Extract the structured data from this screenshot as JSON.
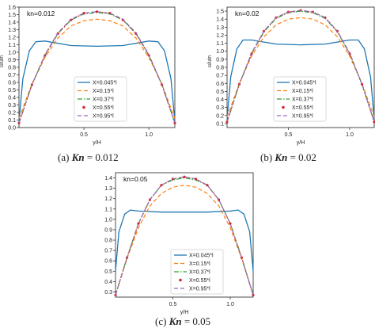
{
  "captions": [
    {
      "prefix": "(a)",
      "label": "Kn",
      "value": "= 0.012"
    },
    {
      "prefix": "(b)",
      "label": "Kn",
      "value": "= 0.02"
    },
    {
      "prefix": "(c)",
      "label": "Kn",
      "value": "= 0.05"
    }
  ],
  "colors": {
    "X=0.045*l": "#1f77b4",
    "X=0.15*l": "#ff7f0e",
    "X=0.37*l": "#2ca02c",
    "X=0.55*l": "#d62728",
    "X=0.95*l": "#9467bd"
  },
  "chart_data": [
    {
      "type": "line",
      "annotation": "kn=0.012",
      "xlabel": "y/H",
      "ylabel": "u/uin",
      "xlim": [
        0,
        1.2
      ],
      "ylim": [
        0,
        1.6
      ],
      "x_ticks": [
        0.5,
        1.0
      ],
      "y_ticks": [
        0.0,
        0.1,
        0.2,
        0.3,
        0.4,
        0.5,
        0.6,
        0.7,
        0.8,
        0.9,
        1.0,
        1.1,
        1.2,
        1.3,
        1.4,
        1.5,
        1.6
      ],
      "legend_position": "bottom-center",
      "series": [
        {
          "name": "X=0.045*l",
          "style": "solid",
          "x": [
            0.0,
            0.03,
            0.08,
            0.13,
            0.2,
            0.4,
            0.6,
            0.8,
            1.0,
            1.07,
            1.12,
            1.17,
            1.2
          ],
          "y": [
            0.08,
            0.65,
            1.02,
            1.14,
            1.15,
            1.09,
            1.08,
            1.09,
            1.15,
            1.14,
            1.02,
            0.65,
            0.08
          ]
        },
        {
          "name": "X=0.15*l",
          "style": "dashed",
          "x": [
            0.0,
            0.1,
            0.2,
            0.3,
            0.4,
            0.5,
            0.6,
            0.7,
            0.8,
            0.9,
            1.0,
            1.1,
            1.2
          ],
          "y": [
            0.12,
            0.58,
            0.93,
            1.19,
            1.35,
            1.42,
            1.44,
            1.42,
            1.35,
            1.19,
            0.93,
            0.58,
            0.12
          ]
        },
        {
          "name": "X=0.37*l",
          "style": "dashdot",
          "x": [
            0.0,
            0.1,
            0.2,
            0.3,
            0.4,
            0.5,
            0.6,
            0.7,
            0.8,
            0.9,
            1.0,
            1.1,
            1.2
          ],
          "y": [
            0.06,
            0.57,
            0.96,
            1.25,
            1.43,
            1.51,
            1.53,
            1.51,
            1.43,
            1.25,
            0.96,
            0.57,
            0.06
          ]
        },
        {
          "name": "X=0.55*l",
          "style": "dotted",
          "x": [
            0.0,
            0.1,
            0.2,
            0.3,
            0.4,
            0.5,
            0.6,
            0.7,
            0.8,
            0.9,
            1.0,
            1.1,
            1.2
          ],
          "y": [
            0.06,
            0.57,
            0.96,
            1.25,
            1.43,
            1.52,
            1.54,
            1.52,
            1.43,
            1.25,
            0.96,
            0.57,
            0.06
          ]
        },
        {
          "name": "X=0.95*l",
          "style": "dashed",
          "x": [
            0.0,
            0.1,
            0.2,
            0.3,
            0.4,
            0.5,
            0.6,
            0.7,
            0.8,
            0.9,
            1.0,
            1.1,
            1.2
          ],
          "y": [
            0.06,
            0.57,
            0.97,
            1.26,
            1.44,
            1.52,
            1.54,
            1.52,
            1.44,
            1.26,
            0.97,
            0.57,
            0.06
          ]
        }
      ]
    },
    {
      "type": "line",
      "annotation": "kn=0.02",
      "xlabel": "y/H",
      "ylabel": "u/uin",
      "xlim": [
        0,
        1.2
      ],
      "ylim": [
        0.05,
        1.55
      ],
      "x_ticks": [
        0.5,
        1.0
      ],
      "y_ticks": [
        0.1,
        0.2,
        0.3,
        0.4,
        0.5,
        0.6,
        0.7,
        0.8,
        0.9,
        1.0,
        1.1,
        1.2,
        1.3,
        1.4,
        1.5
      ],
      "legend_position": "bottom-center",
      "series": [
        {
          "name": "X=0.045*l",
          "style": "solid",
          "x": [
            0.0,
            0.03,
            0.08,
            0.13,
            0.2,
            0.4,
            0.6,
            0.8,
            1.0,
            1.07,
            1.12,
            1.17,
            1.2
          ],
          "y": [
            0.15,
            0.68,
            1.03,
            1.14,
            1.14,
            1.09,
            1.08,
            1.09,
            1.14,
            1.14,
            1.03,
            0.68,
            0.15
          ]
        },
        {
          "name": "X=0.15*l",
          "style": "dashed",
          "x": [
            0.0,
            0.1,
            0.2,
            0.3,
            0.4,
            0.5,
            0.6,
            0.7,
            0.8,
            0.9,
            1.0,
            1.1,
            1.2
          ],
          "y": [
            0.18,
            0.6,
            0.94,
            1.18,
            1.33,
            1.4,
            1.42,
            1.4,
            1.33,
            1.18,
            0.94,
            0.6,
            0.18
          ]
        },
        {
          "name": "X=0.37*l",
          "style": "dashdot",
          "x": [
            0.0,
            0.1,
            0.2,
            0.3,
            0.4,
            0.5,
            0.6,
            0.7,
            0.8,
            0.9,
            1.0,
            1.1,
            1.2
          ],
          "y": [
            0.12,
            0.59,
            0.97,
            1.24,
            1.41,
            1.48,
            1.5,
            1.48,
            1.41,
            1.24,
            0.97,
            0.59,
            0.12
          ]
        },
        {
          "name": "X=0.55*l",
          "style": "dotted",
          "x": [
            0.0,
            0.1,
            0.2,
            0.3,
            0.4,
            0.5,
            0.6,
            0.7,
            0.8,
            0.9,
            1.0,
            1.1,
            1.2
          ],
          "y": [
            0.12,
            0.59,
            0.97,
            1.25,
            1.42,
            1.49,
            1.51,
            1.49,
            1.42,
            1.25,
            0.97,
            0.59,
            0.12
          ]
        },
        {
          "name": "X=0.95*l",
          "style": "dashed",
          "x": [
            0.0,
            0.1,
            0.2,
            0.3,
            0.4,
            0.5,
            0.6,
            0.7,
            0.8,
            0.9,
            1.0,
            1.1,
            1.2
          ],
          "y": [
            0.12,
            0.59,
            0.98,
            1.25,
            1.42,
            1.49,
            1.51,
            1.49,
            1.42,
            1.25,
            0.98,
            0.59,
            0.12
          ]
        }
      ]
    },
    {
      "type": "line",
      "annotation": "kn=0.05",
      "xlabel": "y/H",
      "ylabel": "",
      "xlim": [
        0,
        1.2
      ],
      "ylim": [
        0.25,
        1.45
      ],
      "x_ticks": [
        0.5,
        1.0
      ],
      "y_ticks": [
        0.3,
        0.4,
        0.5,
        0.6,
        0.7,
        0.8,
        0.9,
        1.0,
        1.1,
        1.2,
        1.3,
        1.4
      ],
      "legend_position": "bottom-center",
      "series": [
        {
          "name": "X=0.045*l",
          "style": "solid",
          "x": [
            0.0,
            0.03,
            0.08,
            0.13,
            0.2,
            0.4,
            0.6,
            0.8,
            1.0,
            1.07,
            1.12,
            1.17,
            1.2
          ],
          "y": [
            0.5,
            0.88,
            1.05,
            1.09,
            1.08,
            1.07,
            1.07,
            1.07,
            1.08,
            1.09,
            1.05,
            0.88,
            0.5
          ]
        },
        {
          "name": "X=0.15*l",
          "style": "dashed",
          "x": [
            0.0,
            0.1,
            0.2,
            0.3,
            0.4,
            0.5,
            0.6,
            0.7,
            0.8,
            0.9,
            1.0,
            1.1,
            1.2
          ],
          "y": [
            0.27,
            0.62,
            0.92,
            1.13,
            1.25,
            1.31,
            1.33,
            1.31,
            1.25,
            1.13,
            0.92,
            0.62,
            0.27
          ]
        },
        {
          "name": "X=0.37*l",
          "style": "dashdot",
          "x": [
            0.0,
            0.1,
            0.2,
            0.3,
            0.4,
            0.5,
            0.6,
            0.7,
            0.8,
            0.9,
            1.0,
            1.1,
            1.2
          ],
          "y": [
            0.27,
            0.63,
            0.96,
            1.19,
            1.33,
            1.38,
            1.4,
            1.38,
            1.33,
            1.19,
            0.96,
            0.63,
            0.27
          ]
        },
        {
          "name": "X=0.55*l",
          "style": "dotted",
          "x": [
            0.0,
            0.1,
            0.2,
            0.3,
            0.4,
            0.5,
            0.6,
            0.7,
            0.8,
            0.9,
            1.0,
            1.1,
            1.2
          ],
          "y": [
            0.27,
            0.63,
            0.96,
            1.19,
            1.33,
            1.39,
            1.41,
            1.39,
            1.33,
            1.19,
            0.96,
            0.63,
            0.27
          ]
        },
        {
          "name": "X=0.95*l",
          "style": "dashed",
          "x": [
            0.0,
            0.1,
            0.2,
            0.3,
            0.4,
            0.5,
            0.6,
            0.7,
            0.8,
            0.9,
            1.0,
            1.1,
            1.2
          ],
          "y": [
            0.27,
            0.63,
            0.96,
            1.19,
            1.33,
            1.39,
            1.41,
            1.39,
            1.33,
            1.19,
            0.96,
            0.63,
            0.27
          ]
        }
      ]
    }
  ]
}
